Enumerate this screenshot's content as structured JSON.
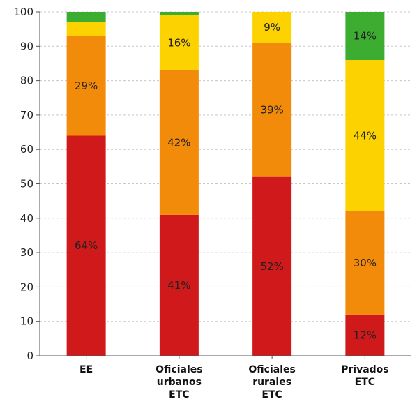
{
  "chart_data": {
    "type": "bar",
    "stacked": true,
    "categories": [
      [
        "EE"
      ],
      [
        "Oficiales",
        "urbanos",
        "ETC"
      ],
      [
        "Oficiales",
        "rurales",
        "ETC"
      ],
      [
        "Privados",
        "ETC"
      ]
    ],
    "ylim": [
      0,
      100
    ],
    "yticks": [
      0,
      10,
      20,
      30,
      40,
      50,
      60,
      70,
      80,
      90,
      100
    ],
    "grid": true,
    "legend": "none",
    "series": [
      {
        "color": "#d0191b",
        "values": [
          64,
          41,
          52,
          12
        ],
        "labels": [
          "64%",
          "41%",
          "52%",
          "12%"
        ]
      },
      {
        "color": "#f28a0a",
        "values": [
          29,
          42,
          39,
          30
        ],
        "labels": [
          "29%",
          "42%",
          "39%",
          "30%"
        ]
      },
      {
        "color": "#fcd200",
        "values": [
          4,
          16,
          9,
          44
        ],
        "labels": [
          "",
          "16%",
          "9%",
          "44%"
        ]
      },
      {
        "color": "#3dad32",
        "values": [
          3,
          1,
          0,
          14
        ],
        "labels": [
          "",
          "",
          "",
          "14%"
        ]
      }
    ]
  }
}
